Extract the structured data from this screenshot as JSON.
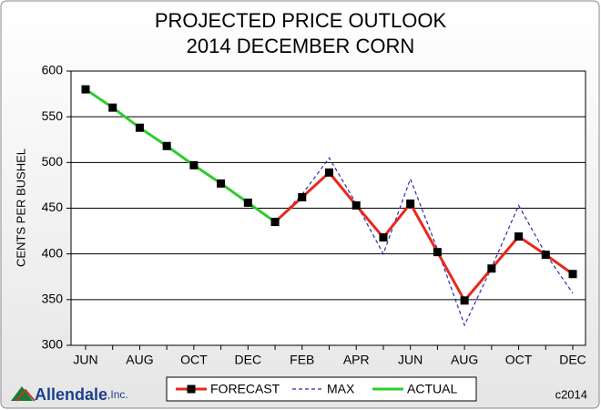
{
  "chart_data": {
    "type": "line",
    "title": "PROJECTED PRICE OUTLOOK",
    "subtitle": "2014 DECEMBER CORN",
    "y_label": "CENTS PER BUSHEL",
    "categories": [
      "JUN",
      null,
      "AUG",
      null,
      "OCT",
      null,
      "DEC",
      null,
      "FEB",
      null,
      "APR",
      null,
      "JUN",
      null,
      "AUG",
      null,
      "OCT",
      null,
      "DEC"
    ],
    "series": [
      {
        "name": "FORECAST",
        "color": "#e8281e",
        "style": "solid",
        "marker": true,
        "values": [
          null,
          null,
          null,
          null,
          null,
          null,
          null,
          435,
          462,
          489,
          453,
          418,
          455,
          402,
          349,
          384,
          419,
          399,
          378
        ]
      },
      {
        "name": "MAX",
        "color": "#2b2bb0",
        "style": "dashed",
        "marker": false,
        "values": [
          null,
          null,
          null,
          null,
          null,
          null,
          null,
          435,
          465,
          505,
          455,
          400,
          482,
          405,
          322,
          385,
          453,
          400,
          357
        ]
      },
      {
        "name": "ACTUAL",
        "color": "#2ecc2e",
        "style": "solid",
        "marker": true,
        "values": [
          580,
          560,
          538,
          518,
          497,
          477,
          456,
          435,
          null,
          null,
          null,
          null,
          null,
          null,
          null,
          null,
          null,
          null,
          null
        ]
      }
    ],
    "ylim": [
      300,
      600
    ],
    "yticks": [
      300,
      350,
      400,
      450,
      500,
      550,
      600
    ],
    "grid": true,
    "legend": "bottom",
    "brand": "Allendale",
    "brand_suffix": ",Inc.",
    "copyright": "c2014"
  }
}
